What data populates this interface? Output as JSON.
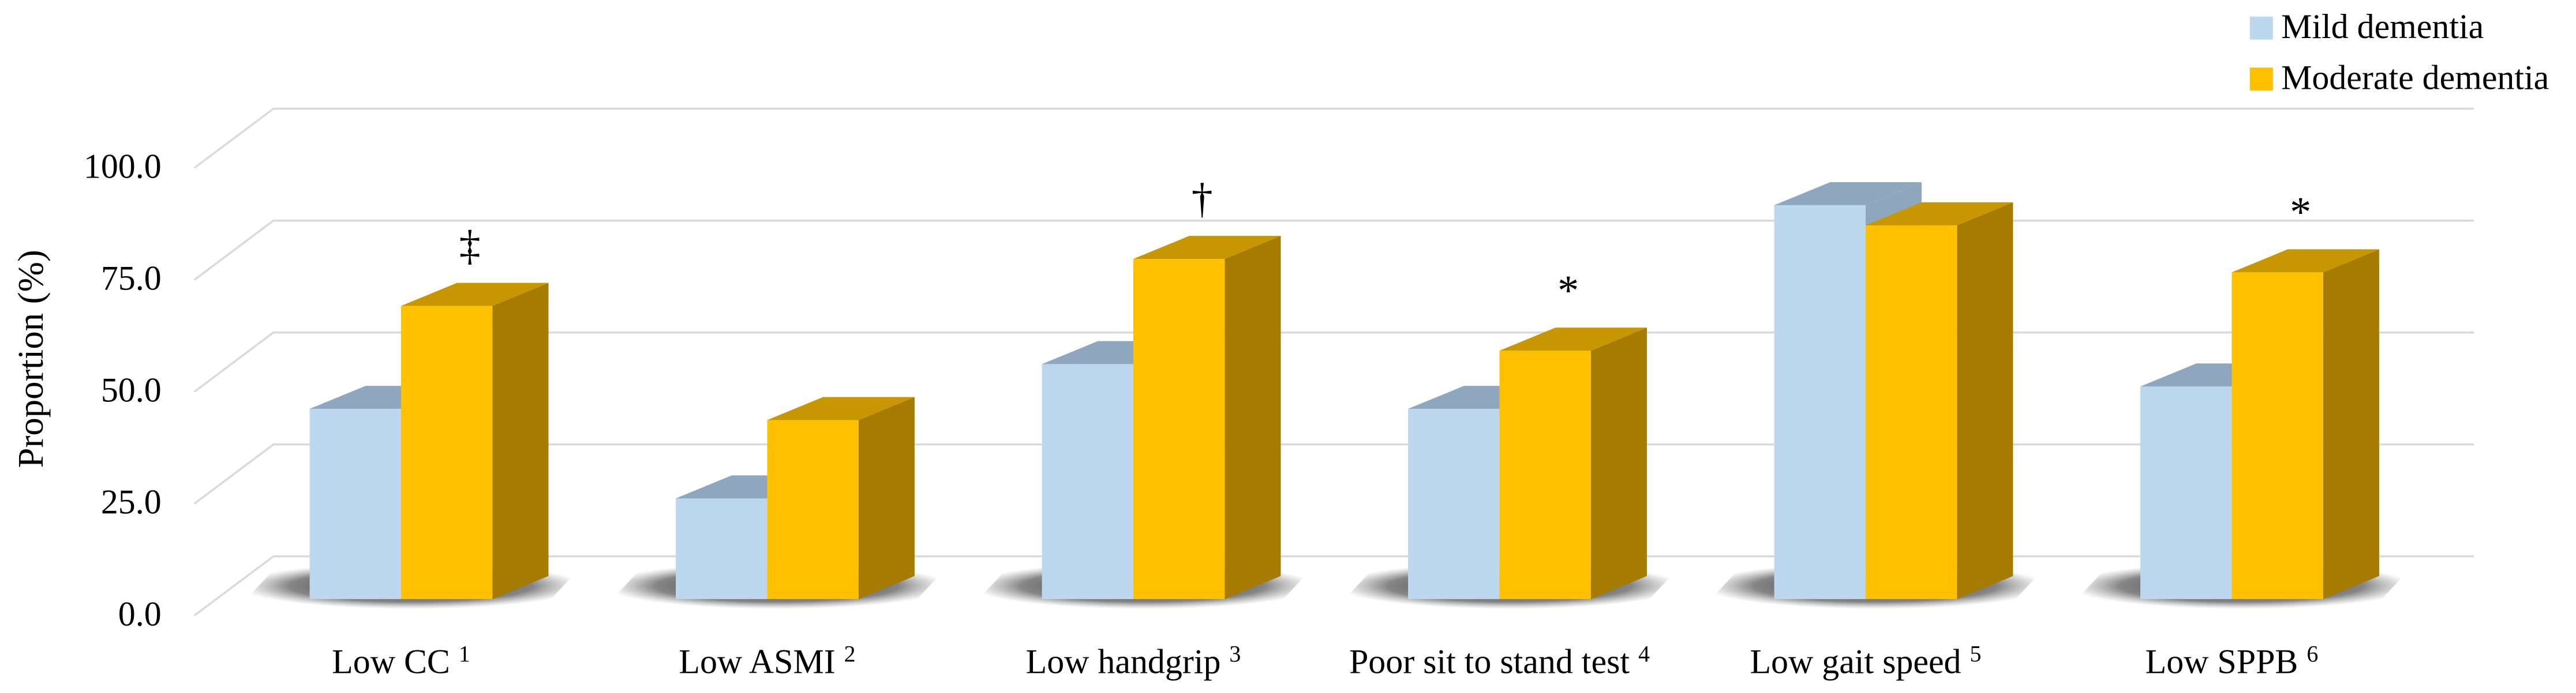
{
  "chart_data": {
    "type": "bar",
    "title": "",
    "ylabel": "Proportion (%)",
    "xlabel": "",
    "ylim": [
      0,
      100
    ],
    "yticks": [
      "0.0",
      "25.0",
      "50.0",
      "75.0",
      "100.0"
    ],
    "grid": true,
    "legend_position": "top-right",
    "categories": [
      {
        "label": "Low CC",
        "sup": "1"
      },
      {
        "label": "Low ASMI",
        "sup": "2"
      },
      {
        "label": "Low handgrip",
        "sup": "3"
      },
      {
        "label": "Poor sit to stand test",
        "sup": "4"
      },
      {
        "label": "Low gait speed",
        "sup": "5"
      },
      {
        "label": "Low SPPB",
        "sup": "6"
      }
    ],
    "series": [
      {
        "name": "Mild dementia",
        "values": [
          42.5,
          22.5,
          52.5,
          42.5,
          88.0,
          47.5
        ],
        "color": "#BDD7EE",
        "top_color": "#8EA7BF",
        "side_color": "#8EA7BF"
      },
      {
        "name": "Moderate dementia",
        "values": [
          65.5,
          40.0,
          76.0,
          55.5,
          83.5,
          73.0
        ],
        "color": "#FFC000",
        "top_color": "#C79600",
        "side_color": "#A67C00"
      }
    ],
    "annotations": [
      "‡",
      "",
      "†",
      "*",
      "",
      "*"
    ]
  }
}
